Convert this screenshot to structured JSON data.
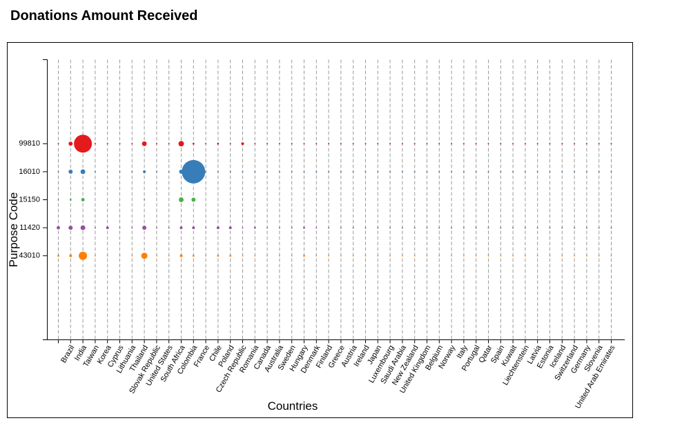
{
  "chart_data": {
    "type": "bubble",
    "title": "Donations Amount Received",
    "x_label": "Countries",
    "y_label": "Purpose Code",
    "categories": [
      null,
      "Brazil",
      "India",
      "Taiwan",
      "Korea",
      "Cyprus",
      "Lithuania",
      "Thailand",
      "Slovak Republic",
      "United States",
      "South Africa",
      "Colombia",
      "France",
      "Chile",
      "Poland",
      "Czech Republic",
      "Romania",
      "Canada",
      "Australia",
      "Sweden",
      "Hungary",
      "Denmark",
      "Finland",
      "Greece",
      "Austria",
      "Ireland",
      "Japan",
      "Luxembourg",
      "Saudi Arabia",
      "New Zealand",
      "United Kingdom",
      "Belgium",
      "Norway",
      "Italy",
      "Portugal",
      "Qatar",
      "Spain",
      "Kuwait",
      "Liechtenstein",
      "Latvia",
      "Estonia",
      "Iceland",
      "Switzerland",
      "Germany",
      "Slovenia",
      "United Arab Emirates"
    ],
    "series": [
      {
        "name": "43010",
        "color": "#ff7f00",
        "values": [
          2,
          4,
          36,
          1,
          1,
          1,
          1,
          20,
          1,
          1,
          4,
          2,
          1,
          2,
          2,
          1,
          1,
          1,
          1,
          1,
          2,
          1,
          1,
          1,
          1,
          1,
          1,
          1,
          1,
          1,
          1,
          1,
          1,
          1,
          1,
          1,
          1,
          1,
          1,
          1,
          1,
          1,
          1,
          1,
          1,
          1
        ]
      },
      {
        "name": "11420",
        "color": "#984ea3",
        "values": [
          6,
          9,
          12,
          1,
          4,
          1,
          1,
          9,
          1,
          1,
          4,
          4,
          1,
          4,
          4,
          1,
          2,
          1,
          1,
          1,
          2,
          1,
          1,
          1,
          1,
          1,
          1,
          1,
          1,
          1,
          1,
          1,
          1,
          1,
          1,
          1,
          1,
          1,
          1,
          1,
          1,
          1,
          1,
          1,
          1,
          1
        ]
      },
      {
        "name": "15150",
        "color": "#4daf4a",
        "values": [
          1,
          2,
          6,
          null,
          null,
          null,
          null,
          1,
          null,
          null,
          12,
          9,
          null,
          null,
          null,
          null,
          null,
          null,
          null,
          null,
          null,
          null,
          null,
          null,
          null,
          null,
          null,
          null,
          null,
          null,
          null,
          null,
          null,
          null,
          null,
          null,
          null,
          null,
          null,
          null,
          null,
          null,
          null,
          null,
          null,
          null
        ]
      },
      {
        "name": "16010",
        "color": "#377eb8",
        "values": [
          1,
          9,
          12,
          1,
          1,
          1,
          1,
          4,
          1,
          1,
          9,
          289,
          1,
          1,
          1,
          1,
          1,
          1,
          1,
          1,
          1,
          1,
          1,
          1,
          1,
          1,
          1,
          1,
          1,
          1,
          1,
          1,
          1,
          1,
          1,
          1,
          1,
          1,
          1,
          1,
          1,
          1,
          1,
          1,
          1,
          1
        ]
      },
      {
        "name": "99810",
        "color": "#e41a1c",
        "values": [
          1,
          9,
          169,
          1,
          1,
          1,
          1,
          12,
          1,
          1,
          16,
          2,
          1,
          2,
          1,
          4,
          1,
          1,
          1,
          1,
          1,
          1,
          1,
          1,
          1,
          1,
          1,
          1,
          1,
          1,
          1,
          1,
          1,
          1,
          1,
          1,
          1,
          1,
          1,
          1,
          1,
          1,
          1,
          1,
          1,
          1
        ]
      }
    ]
  }
}
